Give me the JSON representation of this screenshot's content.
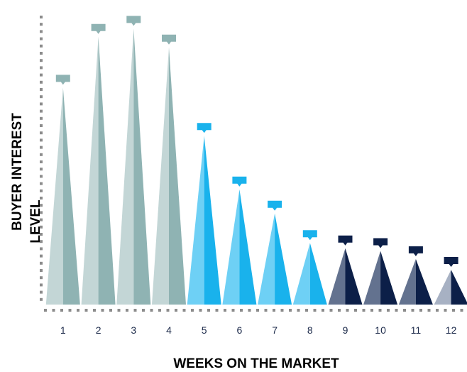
{
  "chart_data": {
    "type": "bar",
    "title": "",
    "xlabel": "WEEKS ON THE MARKET",
    "ylabel_line1": "BUYER INTEREST",
    "ylabel_line2": "LEVEL",
    "categories": [
      "1",
      "2",
      "3",
      "4",
      "5",
      "6",
      "7",
      "8",
      "9",
      "10",
      "11",
      "12"
    ],
    "values": [
      81,
      100,
      103,
      96,
      63,
      43,
      34,
      23,
      21,
      20,
      17,
      13
    ],
    "ylim": [
      0,
      110
    ],
    "grid": false,
    "legend": "none",
    "colors": [
      {
        "light": "#c3d6d6",
        "dark": "#8fb3b3",
        "flag": "#8fb3b3"
      },
      {
        "light": "#c3d6d6",
        "dark": "#8fb3b3",
        "flag": "#8fb3b3"
      },
      {
        "light": "#c3d6d6",
        "dark": "#8fb3b3",
        "flag": "#8fb3b3"
      },
      {
        "light": "#c3d6d6",
        "dark": "#8fb3b3",
        "flag": "#8fb3b3"
      },
      {
        "light": "#6ed0f5",
        "dark": "#19b2ec",
        "flag": "#19b2ec"
      },
      {
        "light": "#6ed0f5",
        "dark": "#19b2ec",
        "flag": "#19b2ec"
      },
      {
        "light": "#6ed0f5",
        "dark": "#19b2ec",
        "flag": "#19b2ec"
      },
      {
        "light": "#6ed0f5",
        "dark": "#19b2ec",
        "flag": "#19b2ec"
      },
      {
        "light": "#63728f",
        "dark": "#0c1f48",
        "flag": "#0c1f48"
      },
      {
        "light": "#63728f",
        "dark": "#0c1f48",
        "flag": "#0c1f48"
      },
      {
        "light": "#63728f",
        "dark": "#0c1f48",
        "flag": "#0c1f48"
      },
      {
        "light": "#a7b1c3",
        "dark": "#0c1f48",
        "flag": "#0c1f48"
      }
    ],
    "axis_color": "#8c8c8c"
  }
}
